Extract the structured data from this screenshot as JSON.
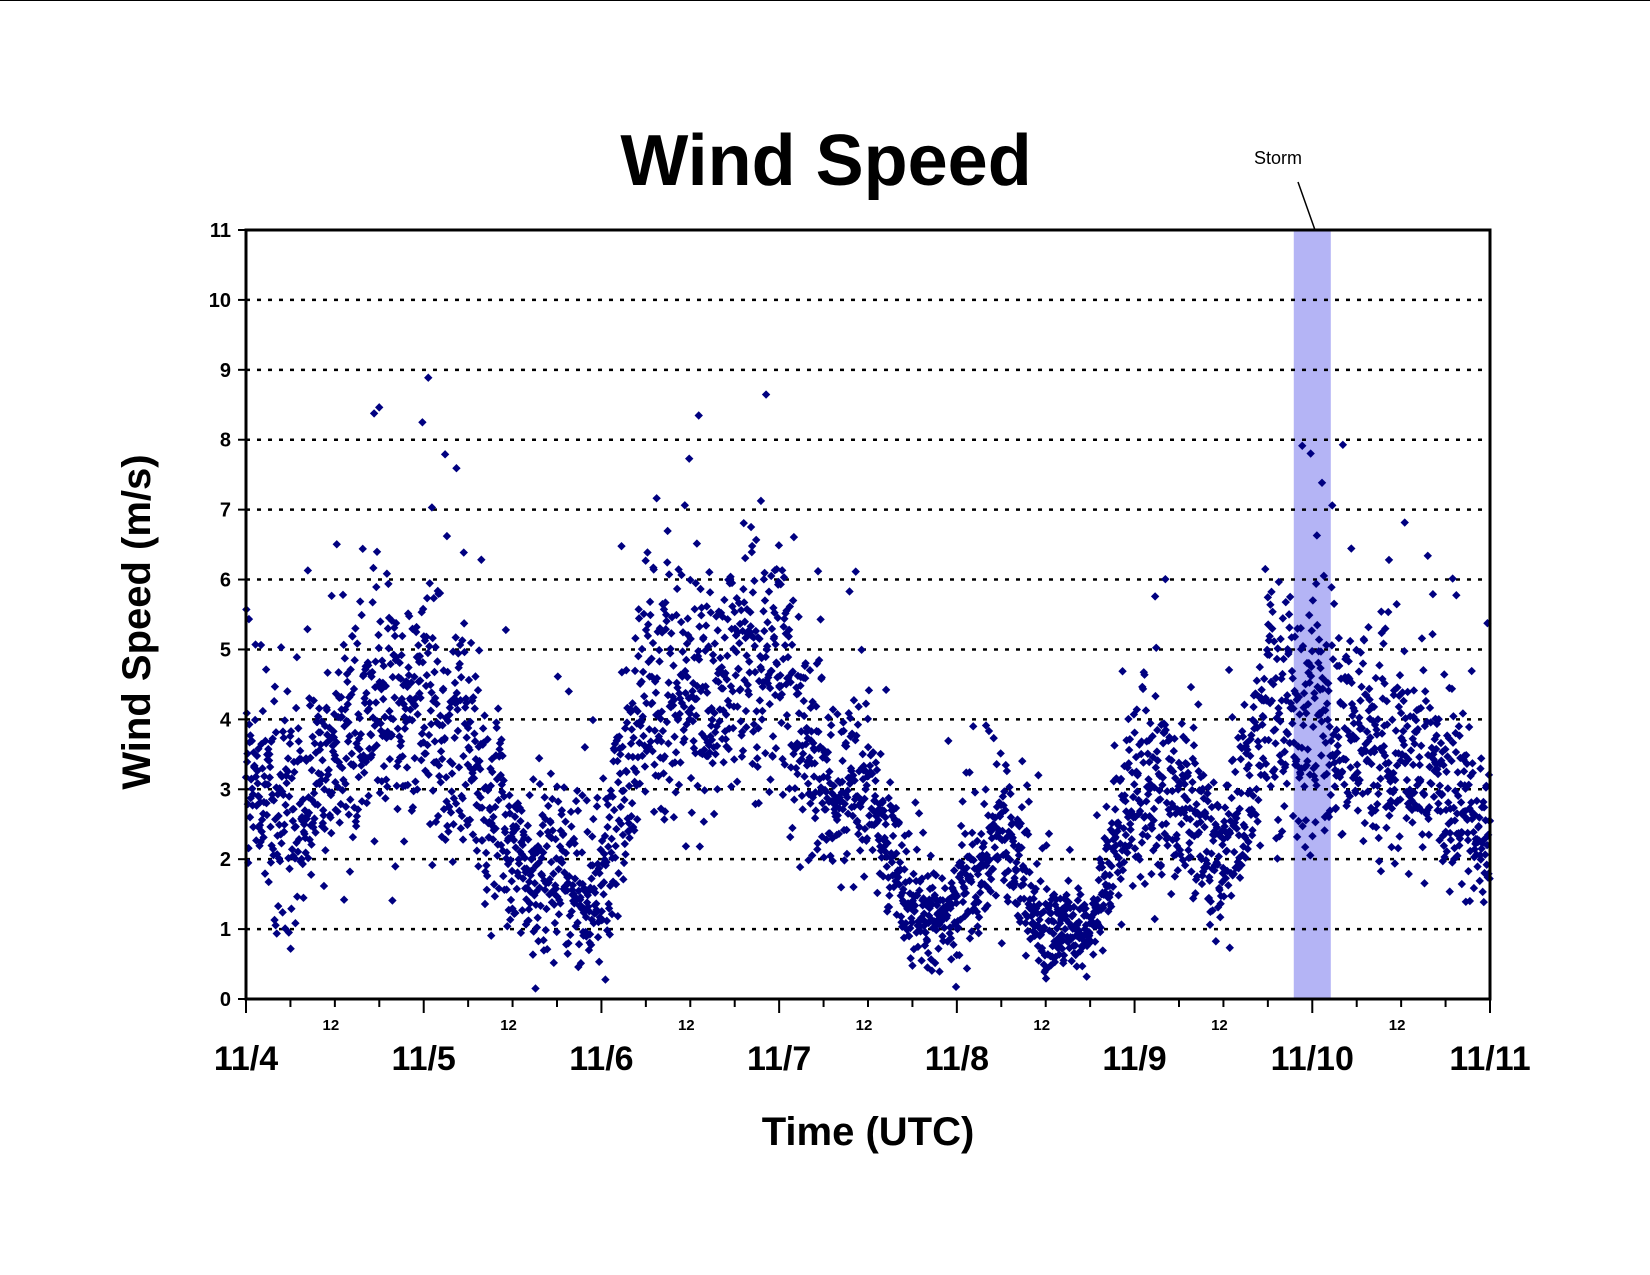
{
  "chart_data": {
    "type": "scatter",
    "title": "Wind Speed",
    "xlabel": "Time (UTC)",
    "ylabel": "Wind Speed (m/s)",
    "xlim": [
      "11/4 00:00",
      "11/11 00:00"
    ],
    "ylim": [
      0,
      11
    ],
    "y_ticks": [
      "0",
      "1",
      "2",
      "3",
      "4",
      "5",
      "6",
      "7",
      "8",
      "9",
      "10",
      "11"
    ],
    "x_major_ticks": [
      "11/4",
      "11/5",
      "11/6",
      "11/7",
      "11/8",
      "11/9",
      "11/10",
      "11/11"
    ],
    "x_minor_tick_label": "12",
    "x_minor_ticks": [
      "12",
      "12",
      "12",
      "12",
      "12",
      "12",
      "12"
    ],
    "grid": "horizontal dotted",
    "marker": "diamond",
    "marker_color": "#000080",
    "annotation": {
      "text": "Storm",
      "x_start": "11/9 21:30",
      "x_end": "11/10 02:30",
      "color": "#b4b4f5"
    },
    "series_profile": {
      "time_hours": [
        0,
        6,
        12,
        18,
        24,
        30,
        36,
        42,
        48,
        54,
        60,
        66,
        72,
        78,
        84,
        90,
        96,
        102,
        108,
        114,
        120,
        126,
        132,
        138,
        144,
        150,
        156,
        162,
        168
      ],
      "typical_mps": [
        3.0,
        2.5,
        3.5,
        4.0,
        4.2,
        3.5,
        2.0,
        1.8,
        1.6,
        4.5,
        4.2,
        4.6,
        4.8,
        3.0,
        3.0,
        1.2,
        1.2,
        2.5,
        1.0,
        1.0,
        3.0,
        3.0,
        1.8,
        4.0,
        4.0,
        3.8,
        3.5,
        3.2,
        2.0
      ],
      "spread_mps": [
        1.2,
        1.5,
        1.3,
        1.5,
        1.5,
        1.3,
        1.0,
        1.0,
        1.0,
        1.5,
        1.5,
        1.5,
        1.5,
        1.0,
        1.0,
        0.6,
        0.6,
        1.0,
        0.5,
        0.5,
        1.0,
        1.2,
        0.8,
        1.4,
        1.4,
        1.3,
        1.3,
        1.2,
        1.0
      ]
    }
  }
}
